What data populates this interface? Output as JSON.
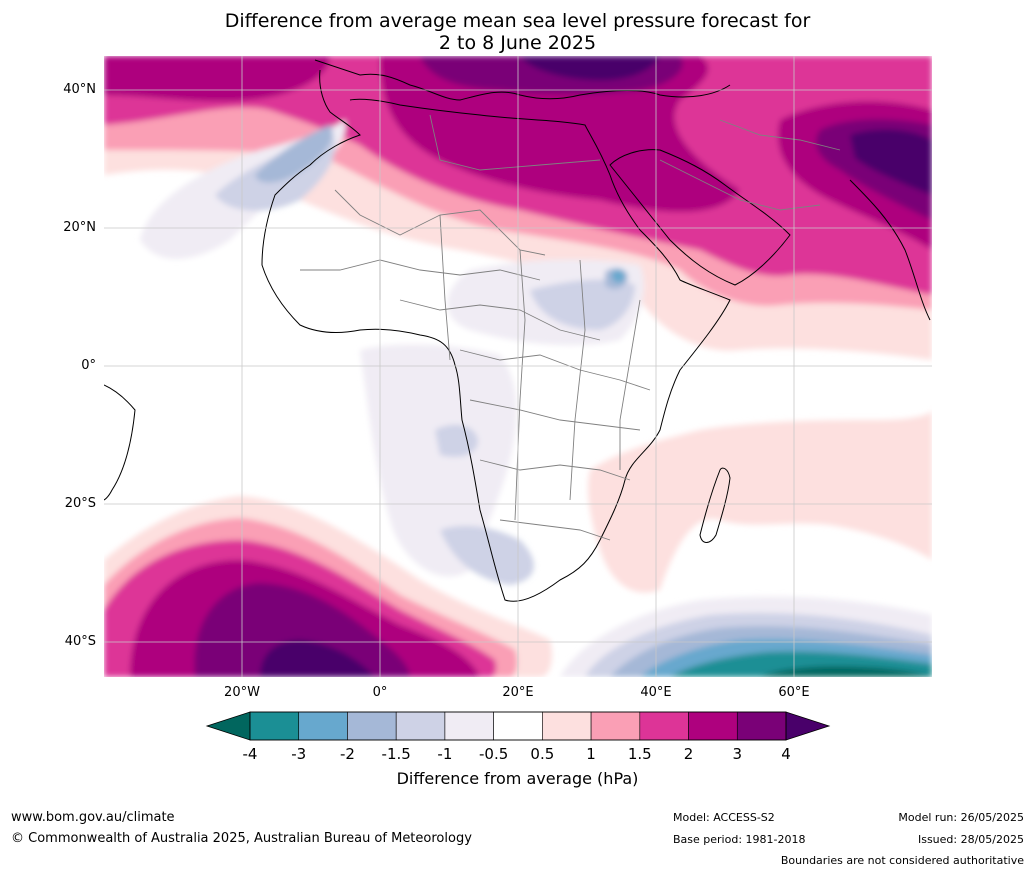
{
  "title": {
    "line1": "Difference from average mean sea level pressure forecast for",
    "line2": "2 to 8 June 2025"
  },
  "map": {
    "lat_ticks": [
      "40°N",
      "20°N",
      "0°",
      "20°S",
      "40°S"
    ],
    "lon_ticks": [
      "20°W",
      "0°",
      "20°E",
      "40°E",
      "60°E"
    ],
    "extent": {
      "lon": [
        -40,
        80
      ],
      "lat": [
        -45,
        45
      ]
    },
    "gridlines": true
  },
  "colorbar": {
    "title": "Difference from average (hPa)",
    "labels": [
      "-4",
      "-3",
      "-2",
      "-1.5",
      "-1",
      "-0.5",
      "0.5",
      "1",
      "1.5",
      "2",
      "3",
      "4"
    ],
    "colors": {
      "under": "#01665e",
      "bins": [
        "#1b8f95",
        "#67a8ce",
        "#a5b8d7",
        "#ced2e6",
        "#f0ecf4",
        "#ffffff",
        "#fde0df",
        "#fa9fb5",
        "#dd3497",
        "#ae017e",
        "#7a0177"
      ],
      "over": "#49006a"
    }
  },
  "footer": {
    "website": "www.bom.gov.au/climate",
    "copyright": "© Commonwealth of Australia 2025, Australian Bureau of Meteorology",
    "model": "Model: ACCESS-S2",
    "base_period": "Base period: 1981-2018",
    "model_run": "Model run: 26/05/2025",
    "issued": "Issued: 28/05/2025",
    "disclaimer": "Boundaries are not considered authoritative"
  }
}
